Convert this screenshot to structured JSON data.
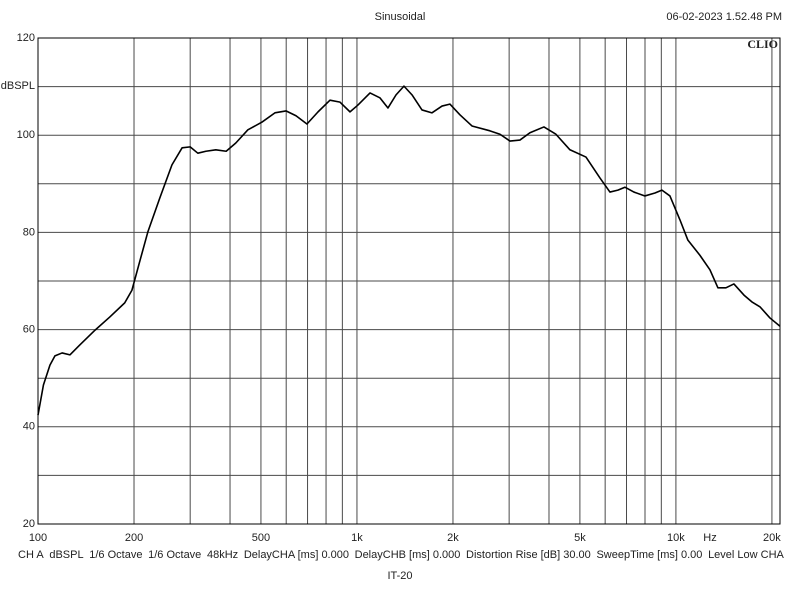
{
  "chart_data": {
    "type": "line",
    "title": "Sinusoidal",
    "timestamp": "06-02-2023 1.52.48 PM",
    "brand": "CLIO",
    "y_label": "dBSPL",
    "x_label": "Hz",
    "bottom_label": "IT-20",
    "footer": [
      "CH A",
      "dBSPL",
      "1/6 Octave",
      "1/6 Octave",
      "48kHz",
      "DelayCHA [ms] 0.000",
      "DelayCHB [ms] 0.000",
      "Distortion Rise [dB] 30.00",
      "SweepTime [ms] 0.00",
      "Level Low CHA"
    ],
    "x_log": true,
    "grid": true,
    "xlim": [
      100,
      21200
    ],
    "ylim": [
      20,
      120
    ],
    "xticks": [
      100,
      200,
      500,
      {
        "value": 1000,
        "label": "1k"
      },
      {
        "value": 2000,
        "label": "2k"
      },
      {
        "value": 5000,
        "label": "5k"
      },
      {
        "value": 10000,
        "label": "10k"
      },
      {
        "value": 20000,
        "label": "20k"
      }
    ],
    "xminor": [
      300,
      400,
      600,
      700,
      800,
      900,
      3000,
      4000,
      6000,
      7000,
      8000,
      9000
    ],
    "yticks": [
      20,
      40,
      60,
      80,
      100,
      120
    ],
    "yminor": [
      30,
      50,
      70,
      90,
      110
    ],
    "series": [
      {
        "name": "CH A",
        "color": "#000000",
        "x": [
          100,
          104,
          109,
          113,
          119,
          126,
          135,
          151,
          168,
          187,
          197,
          209,
          221,
          241,
          263,
          283,
          300,
          317,
          336,
          361,
          389,
          417,
          455,
          504,
          553,
          599,
          644,
          697,
          755,
          823,
          885,
          951,
          1007,
          1099,
          1180,
          1251,
          1326,
          1404,
          1488,
          1599,
          1719,
          1848,
          1956,
          2103,
          2294,
          2612,
          2808,
          3018,
          3243,
          3486,
          3857,
          4205,
          4653,
          5224,
          5778,
          6211,
          6579,
          6921,
          7386,
          7996,
          8597,
          9040,
          9577,
          10293,
          10904,
          11890,
          12785,
          13543,
          14349,
          15199,
          16342,
          17307,
          18339,
          19712,
          21200
        ],
        "values": [
          42.4,
          48.6,
          52.7,
          54.6,
          55.2,
          54.8,
          56.8,
          59.9,
          62.6,
          65.5,
          68.1,
          74.3,
          80.1,
          87.1,
          93.9,
          97.4,
          97.6,
          96.3,
          96.7,
          97.0,
          96.7,
          98.4,
          101.1,
          102.7,
          104.6,
          105.0,
          104.0,
          102.3,
          104.8,
          107.2,
          106.8,
          104.8,
          106.2,
          108.7,
          107.7,
          105.6,
          108.3,
          110.1,
          108.3,
          105.2,
          104.6,
          106.0,
          106.4,
          104.2,
          101.9,
          100.9,
          100.2,
          98.8,
          99.0,
          100.5,
          101.7,
          100.2,
          97.0,
          95.5,
          91.2,
          88.3,
          88.7,
          89.3,
          88.3,
          87.5,
          88.1,
          88.7,
          87.5,
          82.6,
          78.4,
          75.3,
          72.3,
          68.6,
          68.6,
          69.4,
          67.1,
          65.7,
          64.7,
          62.4,
          60.7
        ]
      }
    ]
  }
}
